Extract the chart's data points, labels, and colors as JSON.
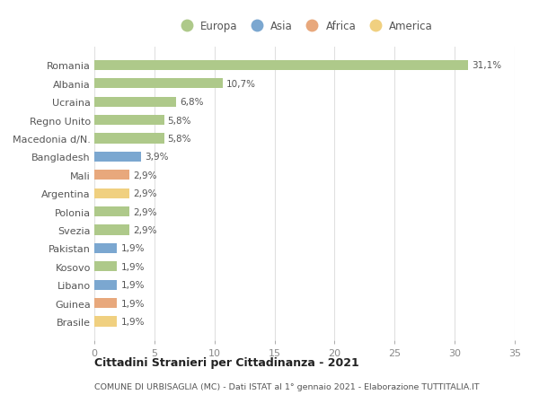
{
  "countries": [
    "Romania",
    "Albania",
    "Ucraina",
    "Regno Unito",
    "Macedonia d/N.",
    "Bangladesh",
    "Mali",
    "Argentina",
    "Polonia",
    "Svezia",
    "Pakistan",
    "Kosovo",
    "Libano",
    "Guinea",
    "Brasile"
  ],
  "values": [
    31.1,
    10.7,
    6.8,
    5.8,
    5.8,
    3.9,
    2.9,
    2.9,
    2.9,
    2.9,
    1.9,
    1.9,
    1.9,
    1.9,
    1.9
  ],
  "labels": [
    "31,1%",
    "10,7%",
    "6,8%",
    "5,8%",
    "5,8%",
    "3,9%",
    "2,9%",
    "2,9%",
    "2,9%",
    "2,9%",
    "1,9%",
    "1,9%",
    "1,9%",
    "1,9%",
    "1,9%"
  ],
  "continents": [
    "Europa",
    "Europa",
    "Europa",
    "Europa",
    "Europa",
    "Asia",
    "Africa",
    "America",
    "Europa",
    "Europa",
    "Asia",
    "Europa",
    "Asia",
    "Africa",
    "America"
  ],
  "continent_colors": {
    "Europa": "#aec98a",
    "Asia": "#7ba7d0",
    "Africa": "#e8a87c",
    "America": "#f0d080"
  },
  "legend_order": [
    "Europa",
    "Asia",
    "Africa",
    "America"
  ],
  "title": "Cittadini Stranieri per Cittadinanza - 2021",
  "subtitle": "COMUNE DI URBISAGLIA (MC) - Dati ISTAT al 1° gennaio 2021 - Elaborazione TUTTITALIA.IT",
  "xlim": [
    0,
    35
  ],
  "xticks": [
    0,
    5,
    10,
    15,
    20,
    25,
    30,
    35
  ],
  "background_color": "#ffffff",
  "grid_color": "#e0e0e0",
  "bar_height": 0.55
}
